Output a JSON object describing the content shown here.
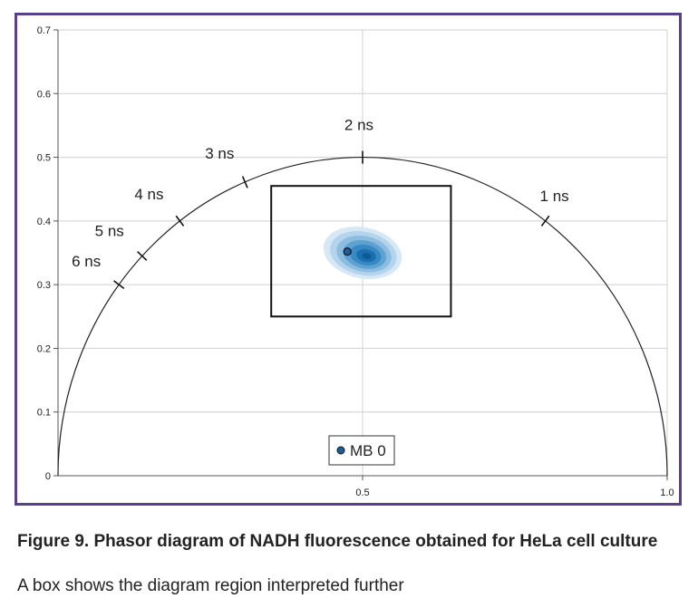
{
  "chart_data": {
    "type": "scatter",
    "xlim": [
      0,
      1.0
    ],
    "ylim": [
      0,
      0.7
    ],
    "x_ticks": [
      {
        "value": 0.5,
        "label": "0.5"
      },
      {
        "value": 1.0,
        "label": "1.0"
      }
    ],
    "y_ticks": [
      {
        "value": 0,
        "label": "0"
      },
      {
        "value": 0.1,
        "label": "0.1"
      },
      {
        "value": 0.2,
        "label": "0.2"
      },
      {
        "value": 0.3,
        "label": "0.3"
      },
      {
        "value": 0.4,
        "label": "0.4"
      },
      {
        "value": 0.5,
        "label": "0.5"
      },
      {
        "value": 0.6,
        "label": "0.6"
      },
      {
        "value": 0.7,
        "label": "0.7"
      }
    ],
    "grid": true,
    "universal_circle": {
      "center": [
        0.5,
        0
      ],
      "radius": 0.5
    },
    "lifetime_markers": [
      {
        "label": "1 ns",
        "x": 0.8,
        "y": 0.4
      },
      {
        "label": "2 ns",
        "x": 0.5,
        "y": 0.5
      },
      {
        "label": "3 ns",
        "x": 0.307,
        "y": 0.461
      },
      {
        "label": "4 ns",
        "x": 0.2,
        "y": 0.4
      },
      {
        "label": "5 ns",
        "x": 0.138,
        "y": 0.345
      },
      {
        "label": "6 ns",
        "x": 0.1,
        "y": 0.3
      }
    ],
    "region_box": {
      "x": [
        0.35,
        0.645
      ],
      "y": [
        0.25,
        0.455
      ]
    },
    "density_cloud": {
      "center": [
        0.5,
        0.35
      ],
      "spread_x": 0.065,
      "spread_y": 0.04,
      "color": "#1f78b4"
    },
    "series": [
      {
        "name": "MB 0",
        "points": [
          {
            "x": 0.475,
            "y": 0.352
          }
        ],
        "color": "#1f5f99"
      }
    ],
    "legend": {
      "position": "bottom-center",
      "label": "MB 0"
    }
  },
  "caption": {
    "title": "Figure 9. Phasor diagram of NADH fluorescence obtained for HeLa cell culture",
    "subtitle": "A box shows the diagram region interpreted further"
  },
  "colors": {
    "frame": "#5b3f8f",
    "grid": "#d0d0d0",
    "axis": "#555555",
    "curve": "#222222"
  }
}
